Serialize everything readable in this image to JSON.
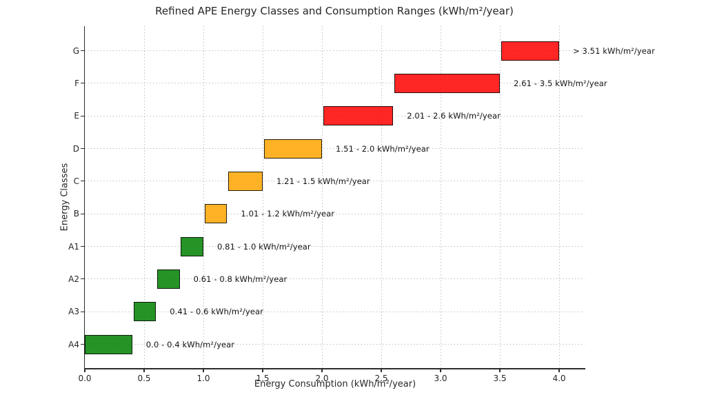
{
  "chart_data": {
    "type": "bar",
    "orientation": "horizontal",
    "title": "Refined APE Energy Classes and Consumption Ranges (kWh/m²/year)",
    "xlabel": "Energy Consumption (kWh/m²/year)",
    "ylabel": "Energy Classes",
    "categories": [
      "G",
      "F",
      "E",
      "D",
      "C",
      "B",
      "A1",
      "A2",
      "A3",
      "A4"
    ],
    "x_ticks": [
      0.0,
      0.5,
      1.0,
      1.5,
      2.0,
      2.5,
      3.0,
      3.5,
      4.0
    ],
    "x_tick_labels": [
      "0.0",
      "0.5",
      "1.0",
      "1.5",
      "2.0",
      "2.5",
      "3.0",
      "3.5",
      "4.0"
    ],
    "xlim": [
      0,
      4.215
    ],
    "grid": "dotted",
    "legend": "none",
    "fill_alpha": 0.85,
    "colors": {
      "red": "#ff0000",
      "orange": "#ffa500",
      "green": "#008000"
    },
    "series": [
      {
        "category": "G",
        "start": 3.51,
        "end": 4.0,
        "color_name": "red",
        "annotation": "> 3.51 kWh/m²/year"
      },
      {
        "category": "F",
        "start": 2.61,
        "end": 3.5,
        "color_name": "red",
        "annotation": "2.61 - 3.5 kWh/m²/year"
      },
      {
        "category": "E",
        "start": 2.01,
        "end": 2.6,
        "color_name": "red",
        "annotation": "2.01 - 2.6 kWh/m²/year"
      },
      {
        "category": "D",
        "start": 1.51,
        "end": 2.0,
        "color_name": "orange",
        "annotation": "1.51 - 2.0 kWh/m²/year"
      },
      {
        "category": "C",
        "start": 1.21,
        "end": 1.5,
        "color_name": "orange",
        "annotation": "1.21 - 1.5 kWh/m²/year"
      },
      {
        "category": "B",
        "start": 1.01,
        "end": 1.2,
        "color_name": "orange",
        "annotation": "1.01 - 1.2 kWh/m²/year"
      },
      {
        "category": "A1",
        "start": 0.81,
        "end": 1.0,
        "color_name": "green",
        "annotation": "0.81 - 1.0 kWh/m²/year"
      },
      {
        "category": "A2",
        "start": 0.61,
        "end": 0.8,
        "color_name": "green",
        "annotation": "0.61 - 0.8 kWh/m²/year"
      },
      {
        "category": "A3",
        "start": 0.41,
        "end": 0.6,
        "color_name": "green",
        "annotation": "0.41 - 0.6 kWh/m²/year"
      },
      {
        "category": "A4",
        "start": 0.0,
        "end": 0.4,
        "color_name": "green",
        "annotation": "0.0 - 0.4 kWh/m²/year"
      }
    ]
  }
}
